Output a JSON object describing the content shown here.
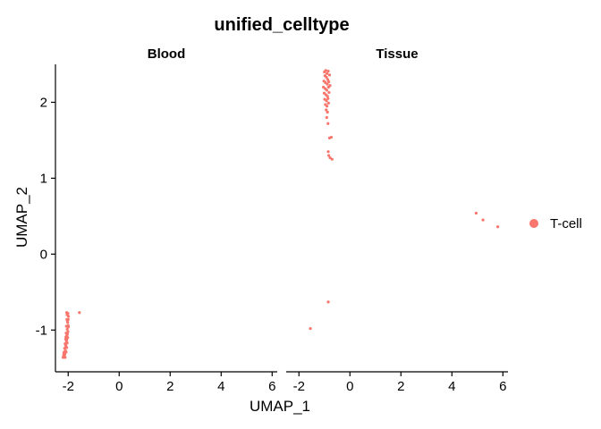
{
  "chart_data": {
    "type": "scatter",
    "title": "unified_celltype",
    "xlabel": "UMAP_1",
    "ylabel": "UMAP_2",
    "xlim": [
      -2.5,
      6.2
    ],
    "ylim": [
      -1.55,
      2.5
    ],
    "x_ticks": [
      -2,
      0,
      2,
      4,
      6
    ],
    "y_ticks": [
      -1,
      0,
      1,
      2
    ],
    "grid": false,
    "legend_position": "right",
    "point_color": "#F8766D",
    "legend": [
      {
        "label": "T-cell",
        "color": "#F8766D"
      }
    ],
    "panels": [
      {
        "label": "Blood",
        "points": [
          [
            -2.06,
            -0.77
          ],
          [
            -2.04,
            -0.8
          ],
          [
            -2.01,
            -0.78
          ],
          [
            -1.99,
            -0.82
          ],
          [
            -2.05,
            -0.86
          ],
          [
            -2.02,
            -0.9
          ],
          [
            -2.0,
            -0.94
          ],
          [
            -2.07,
            -0.95
          ],
          [
            -2.04,
            -0.99
          ],
          [
            -2.01,
            -1.02
          ],
          [
            -2.08,
            -1.04
          ],
          [
            -2.05,
            -1.07
          ],
          [
            -2.02,
            -1.1
          ],
          [
            -2.1,
            -1.12
          ],
          [
            -2.07,
            -1.15
          ],
          [
            -2.04,
            -1.17
          ],
          [
            -2.12,
            -1.18
          ],
          [
            -2.09,
            -1.21
          ],
          [
            -2.06,
            -1.23
          ],
          [
            -2.14,
            -1.24
          ],
          [
            -2.11,
            -1.27
          ],
          [
            -2.08,
            -1.29
          ],
          [
            -2.16,
            -1.29
          ],
          [
            -2.13,
            -1.32
          ],
          [
            -2.18,
            -1.33
          ],
          [
            -2.15,
            -1.35
          ],
          [
            -2.2,
            -1.36
          ],
          [
            -2.12,
            -1.36
          ],
          [
            -2.03,
            -0.88
          ],
          [
            -1.99,
            -0.96
          ],
          [
            -2.03,
            -1.05
          ],
          [
            -2.06,
            -1.13
          ],
          [
            -2.1,
            -1.2
          ],
          [
            -2.17,
            -1.3
          ],
          [
            -2.0,
            -0.86
          ],
          [
            -2.09,
            -1.09
          ],
          [
            -1.56,
            -0.77
          ]
        ]
      },
      {
        "label": "Tissue",
        "points": [
          [
            -1.0,
            2.4
          ],
          [
            -0.95,
            2.42
          ],
          [
            -0.9,
            2.38
          ],
          [
            -0.85,
            2.41
          ],
          [
            -0.98,
            2.35
          ],
          [
            -0.92,
            2.33
          ],
          [
            -0.87,
            2.3
          ],
          [
            -0.8,
            2.36
          ],
          [
            -1.02,
            2.28
          ],
          [
            -0.96,
            2.26
          ],
          [
            -0.89,
            2.24
          ],
          [
            -0.83,
            2.27
          ],
          [
            -1.04,
            2.2
          ],
          [
            -0.97,
            2.18
          ],
          [
            -0.91,
            2.16
          ],
          [
            -0.84,
            2.2
          ],
          [
            -0.78,
            2.22
          ],
          [
            -1.01,
            2.12
          ],
          [
            -0.94,
            2.1
          ],
          [
            -0.88,
            2.08
          ],
          [
            -0.82,
            2.13
          ],
          [
            -0.99,
            2.04
          ],
          [
            -0.92,
            2.02
          ],
          [
            -0.86,
            2.05
          ],
          [
            -0.96,
            1.97
          ],
          [
            -0.9,
            1.95
          ],
          [
            -0.84,
            1.99
          ],
          [
            -0.93,
            1.9
          ],
          [
            -0.88,
            1.87
          ],
          [
            -0.91,
            1.8
          ],
          [
            -0.86,
            1.72
          ],
          [
            -0.8,
            1.53
          ],
          [
            -0.73,
            1.54
          ],
          [
            -0.85,
            1.35
          ],
          [
            -0.78,
            1.27
          ],
          [
            -0.7,
            1.25
          ],
          [
            -0.83,
            1.3
          ],
          [
            4.95,
            0.54
          ],
          [
            5.22,
            0.45
          ],
          [
            5.8,
            0.36
          ],
          [
            -0.85,
            -0.63
          ],
          [
            -1.55,
            -0.98
          ]
        ]
      }
    ]
  }
}
